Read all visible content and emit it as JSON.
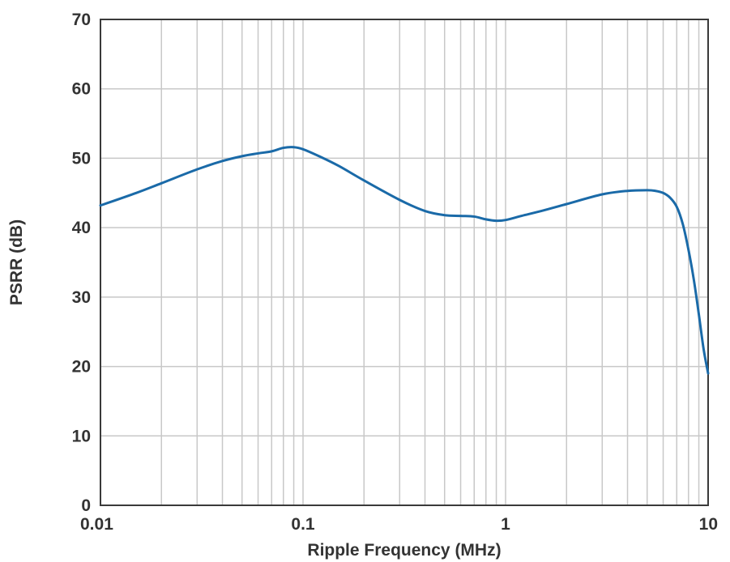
{
  "chart_data": {
    "type": "line",
    "title": "",
    "xlabel": "Ripple Frequency (MHz)",
    "ylabel": "PSRR (dB)",
    "x_scale": "log",
    "xlim": [
      0.01,
      10
    ],
    "ylim": [
      0,
      70
    ],
    "grid": true,
    "x_ticks": [
      {
        "value": 0.01,
        "label": "0.01"
      },
      {
        "value": 0.1,
        "label": "0.1"
      },
      {
        "value": 1,
        "label": "1"
      },
      {
        "value": 10,
        "label": "10"
      }
    ],
    "y_ticks": [
      {
        "value": 0,
        "label": "0"
      },
      {
        "value": 10,
        "label": "10"
      },
      {
        "value": 20,
        "label": "20"
      },
      {
        "value": 30,
        "label": "30"
      },
      {
        "value": 40,
        "label": "40"
      },
      {
        "value": 50,
        "label": "50"
      },
      {
        "value": 60,
        "label": "60"
      },
      {
        "value": 70,
        "label": "70"
      }
    ],
    "series": [
      {
        "color": "#1a6aa8",
        "x": [
          0.01,
          0.015,
          0.02,
          0.03,
          0.04,
          0.05,
          0.06,
          0.07,
          0.08,
          0.09,
          0.1,
          0.12,
          0.15,
          0.2,
          0.3,
          0.4,
          0.5,
          0.6,
          0.7,
          0.8,
          0.9,
          1.0,
          1.2,
          1.5,
          2,
          3,
          4,
          5,
          5.5,
          6,
          6.5,
          7,
          7.5,
          8,
          8.5,
          9,
          9.5,
          10
        ],
        "y": [
          43.2,
          45.0,
          46.4,
          48.4,
          49.6,
          50.3,
          50.7,
          51.0,
          51.5,
          51.6,
          51.3,
          50.3,
          48.9,
          46.8,
          44.0,
          42.4,
          41.8,
          41.7,
          41.6,
          41.2,
          41.0,
          41.1,
          41.7,
          42.4,
          43.4,
          44.8,
          45.3,
          45.4,
          45.3,
          45.0,
          44.3,
          43.0,
          40.5,
          36.8,
          32.5,
          27.5,
          22.5,
          19.0
        ]
      }
    ]
  }
}
